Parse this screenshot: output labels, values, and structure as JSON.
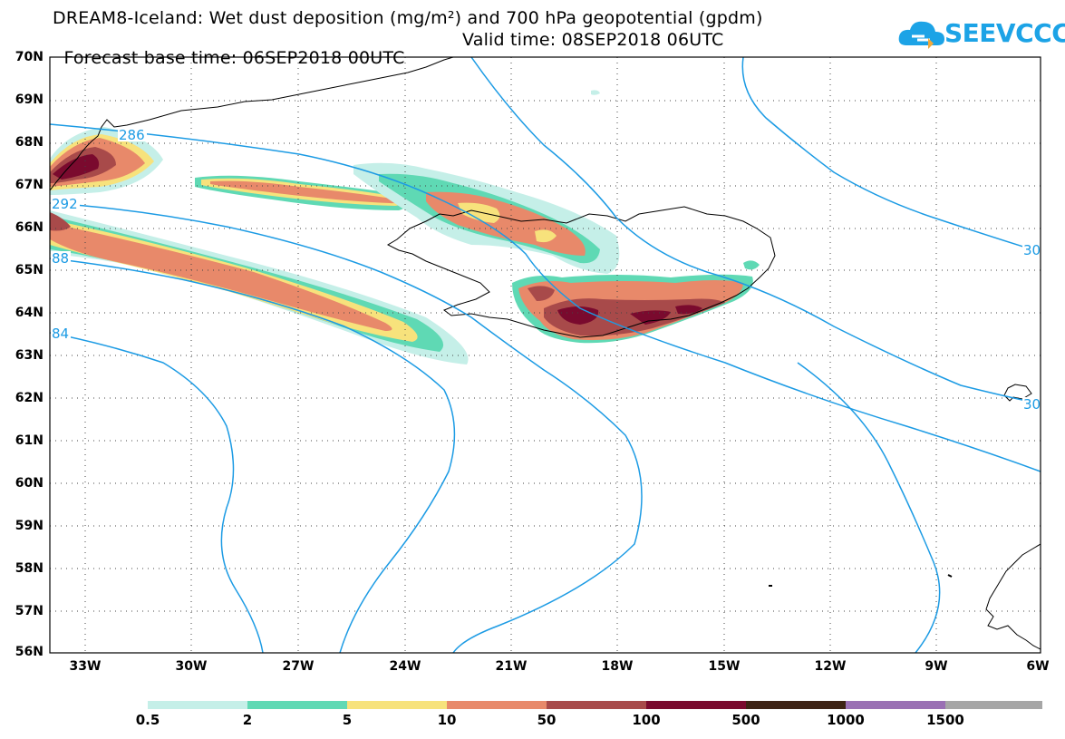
{
  "title": {
    "line1": "DREAM8-Iceland: Wet dust deposition (mg/m²) and 700 hPa geopotential (gpdm)",
    "base_time": "Forecast base time: 06SEP2018 00UTC",
    "valid_time": "Valid time: 08SEP2018 06UTC"
  },
  "logo": {
    "text": "SEEVCCC",
    "icon": "cloud-icon",
    "color": "#1ca3e6"
  },
  "axes": {
    "lat_labels": [
      "70N",
      "69N",
      "68N",
      "67N",
      "66N",
      "65N",
      "64N",
      "63N",
      "62N",
      "61N",
      "60N",
      "59N",
      "58N",
      "57N",
      "56N"
    ],
    "lon_labels": [
      "33W",
      "30W",
      "27W",
      "24W",
      "21W",
      "18W",
      "15W",
      "12W",
      "9W",
      "6W"
    ]
  },
  "contour_labels": [
    "286",
    "292",
    "88",
    "84",
    "30",
    "30"
  ],
  "legend": {
    "labels": [
      "0.5",
      "2",
      "5",
      "10",
      "50",
      "100",
      "500",
      "1000",
      "1500"
    ],
    "colors": [
      "#c5efe8",
      "#5fd9b4",
      "#f7e27c",
      "#e8896a",
      "#a84a4a",
      "#7a0a2e",
      "#3d2314",
      "#9a70b4",
      "#a6a6a6"
    ]
  },
  "contour_color": "#1c9be4"
}
